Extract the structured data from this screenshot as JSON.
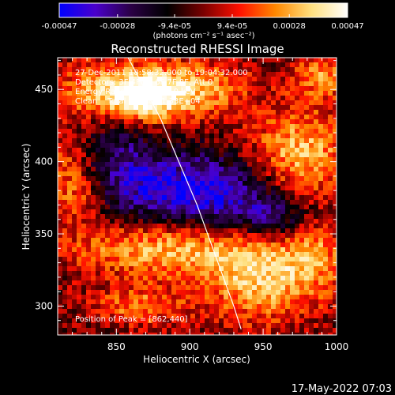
{
  "chart_data": {
    "type": "heatmap",
    "title": "Reconstructed RHESSI Image",
    "xlabel": "Heliocentric X (arcsec)",
    "ylabel": "Heliocentric Y (arcsec)",
    "xlim": [
      810,
      1000
    ],
    "ylim": [
      280,
      472
    ],
    "x_ticks": [
      850,
      900,
      950,
      1000
    ],
    "y_ticks": [
      300,
      350,
      400,
      450
    ],
    "colorbar": {
      "min": -0.00047,
      "max": 0.00047,
      "tick_values": [
        -0.00047,
        -0.00028,
        -9.4e-05,
        9.4e-05,
        0.00028,
        0.00047
      ],
      "tick_labels": [
        "-0.00047",
        "-0.00028",
        "-9.4e-05",
        "9.4e-05",
        "0.00028",
        "0.00047"
      ],
      "unit_label": "(photons cm⁻² s⁻¹ asec⁻²)",
      "colors": [
        "#0000ff",
        "#4a00cc",
        "#2a0044",
        "#000000",
        "#7a0000",
        "#ff1000",
        "#ff8800",
        "#ffe080",
        "#ffffff"
      ]
    },
    "info_lines": [
      "27-Dec-2011 18:58:32.000 to 19:04:32.000",
      "Detectors: 3F 4F 5F 6F 7F 8F, Att 0",
      "Energy Range: 25.0 - 50.0 keV",
      "Clean    Total Counts: 1.33E+04"
    ],
    "peak_label": "Position of Peak = [862,440]",
    "peak": {
      "x": 862,
      "y": 440
    },
    "limb_curve": {
      "x": [
        858,
        880,
        905,
        930,
        935
      ],
      "y": [
        472,
        430,
        370,
        300,
        284
      ]
    },
    "grid": false,
    "regions": [
      {
        "x": 868,
        "y": 445,
        "sx": 16,
        "sy": 12,
        "a": 0.95
      },
      {
        "x": 900,
        "y": 450,
        "sx": 28,
        "sy": 14,
        "a": 0.7
      },
      {
        "x": 835,
        "y": 450,
        "sx": 18,
        "sy": 15,
        "a": 0.6
      },
      {
        "x": 975,
        "y": 405,
        "sx": 24,
        "sy": 22,
        "a": 0.75
      },
      {
        "x": 990,
        "y": 460,
        "sx": 14,
        "sy": 12,
        "a": 0.55
      },
      {
        "x": 820,
        "y": 400,
        "sx": 16,
        "sy": 18,
        "a": 0.5
      },
      {
        "x": 825,
        "y": 375,
        "sx": 14,
        "sy": 14,
        "a": 0.4
      },
      {
        "x": 880,
        "y": 340,
        "sx": 45,
        "sy": 14,
        "a": 0.7
      },
      {
        "x": 950,
        "y": 320,
        "sx": 30,
        "sy": 22,
        "a": 0.75
      },
      {
        "x": 865,
        "y": 300,
        "sx": 22,
        "sy": 10,
        "a": 0.5
      },
      {
        "x": 985,
        "y": 345,
        "sx": 14,
        "sy": 20,
        "a": 0.45
      },
      {
        "x": 900,
        "y": 380,
        "sx": 40,
        "sy": 18,
        "a": -0.9
      },
      {
        "x": 960,
        "y": 360,
        "sx": 25,
        "sy": 12,
        "a": -0.6
      },
      {
        "x": 845,
        "y": 405,
        "sx": 20,
        "sy": 20,
        "a": -0.5
      }
    ]
  },
  "footer": {
    "timestamp": "17-May-2022 07:03"
  }
}
